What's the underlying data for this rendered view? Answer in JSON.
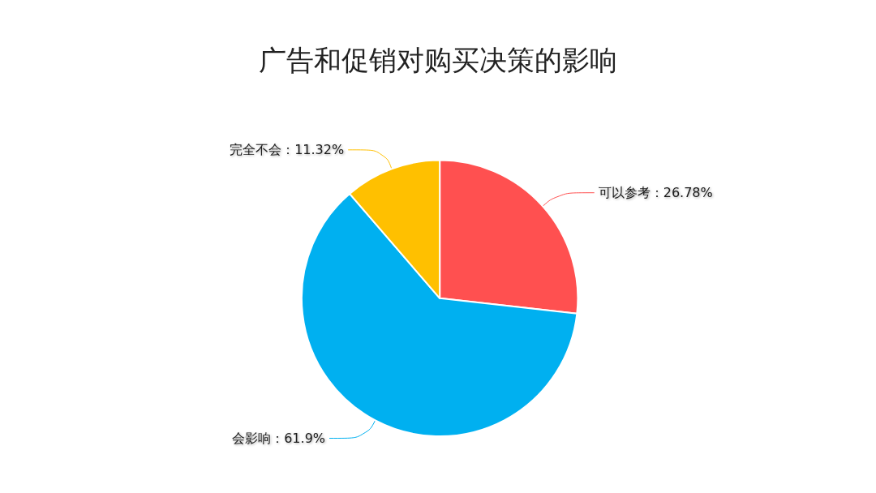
{
  "chart_data": {
    "type": "pie",
    "title": "广告和促销对购买决策的影响",
    "categories": [
      "可以参考",
      "会影响",
      "完全不会"
    ],
    "values": [
      26.78,
      61.9,
      11.32
    ],
    "value_labels": [
      "26.78%",
      "61.9%",
      "11.32%"
    ],
    "colors": [
      "#ff5050",
      "#00b0f0",
      "#ffc000"
    ],
    "legend": false
  }
}
